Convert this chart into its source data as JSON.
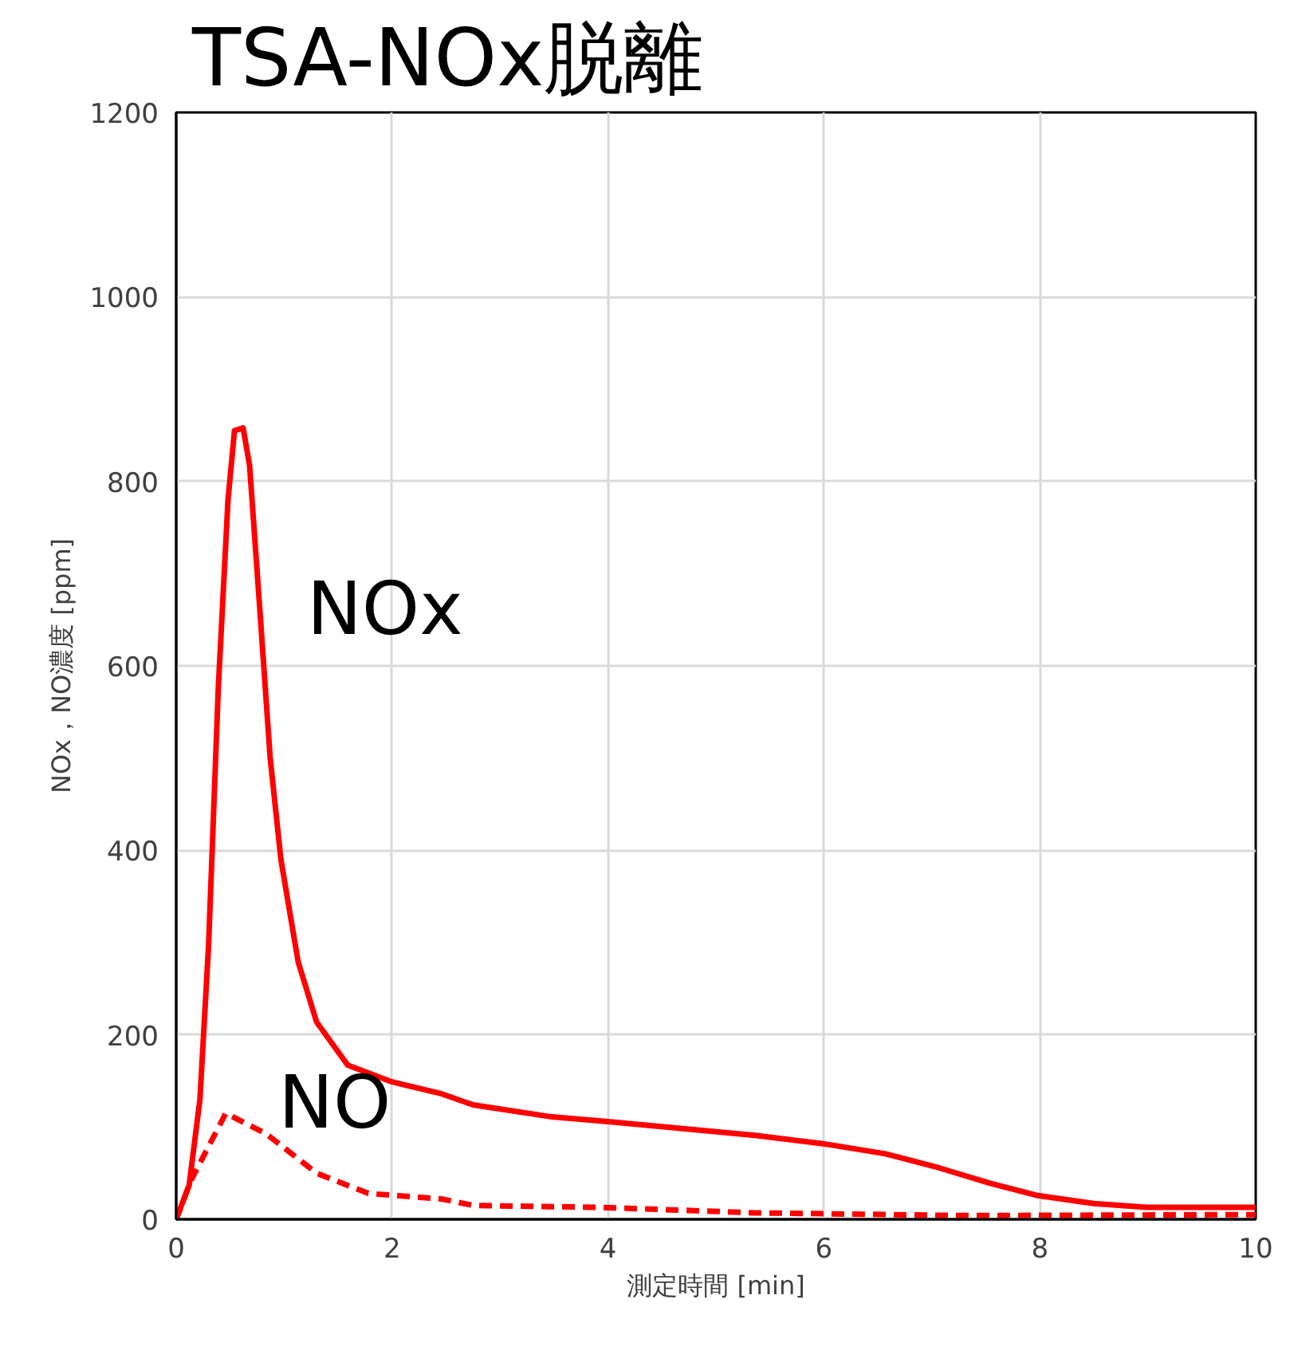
{
  "chart_data": {
    "type": "line",
    "title": "TSA-NOx脱離",
    "xlabel": "測定時間 [min]",
    "ylabel": "NOx，NO濃度 [ppm]",
    "xlim": [
      0,
      10
    ],
    "xticks": [
      0,
      2,
      4,
      6,
      8,
      10
    ],
    "ylim": [
      0,
      1200
    ],
    "yticks": [
      0,
      200,
      400,
      600,
      800,
      1000,
      1200
    ],
    "grid": true,
    "marker": "none",
    "series": [
      {
        "name": "NOx",
        "color": "#ff0000",
        "line_style": "solid",
        "x": [
          0,
          0.12,
          0.22,
          0.3,
          0.39,
          0.48,
          0.54,
          0.62,
          0.68,
          0.77,
          0.87,
          0.97,
          1.13,
          1.3,
          1.59,
          2.0,
          2.46,
          2.75,
          3.48,
          4.0,
          5.36,
          5.99,
          6.57,
          7.06,
          7.54,
          7.97,
          8.5,
          8.99,
          10
        ],
        "values": [
          0,
          37,
          130,
          297,
          576,
          780,
          855,
          858,
          817,
          669,
          501,
          390,
          279,
          214,
          167,
          149,
          136,
          124,
          111,
          106,
          91,
          82,
          71,
          56,
          39,
          26,
          17,
          13,
          13
        ]
      },
      {
        "name": "NO",
        "color": "#ff0000",
        "line_style": "dashed",
        "x": [
          0,
          0.14,
          0.46,
          0.83,
          1.3,
          1.78,
          2.46,
          2.75,
          3.91,
          5.36,
          7.3,
          10
        ],
        "values": [
          0,
          43,
          115,
          93,
          50,
          28,
          22,
          15,
          13,
          7,
          4,
          5
        ]
      }
    ]
  }
}
